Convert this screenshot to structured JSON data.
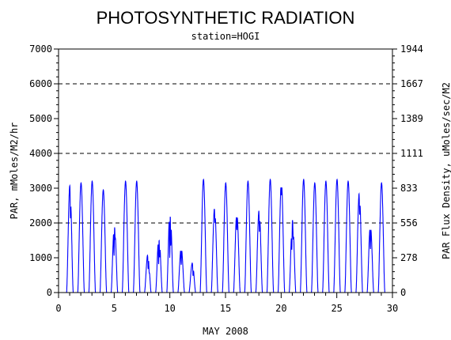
{
  "chart_data": {
    "type": "line",
    "title": "PHOTOSYNTHETIC RADIATION",
    "subtitle": "station=HOGI",
    "xlabel": "MAY 2008",
    "ylabel": "PAR, mMoles/M2/hr",
    "y2label": "PAR Flux Density, uMoles/sec/M2",
    "xlim": [
      0,
      30
    ],
    "ylim": [
      0,
      7000
    ],
    "x_ticks": [
      "0",
      "5",
      "10",
      "15",
      "20",
      "25",
      "30"
    ],
    "x_tick_values": [
      0,
      5,
      10,
      15,
      20,
      25,
      30
    ],
    "y_ticks": [
      "0",
      "1000",
      "2000",
      "3000",
      "4000",
      "5000",
      "6000",
      "7000"
    ],
    "y_tick_values": [
      0,
      1000,
      2000,
      3000,
      4000,
      5000,
      6000,
      7000
    ],
    "y2_ticks": [
      "0",
      "278",
      "556",
      "833",
      "1111",
      "1389",
      "1667",
      "1944"
    ],
    "y2_tick_values": [
      0,
      1000,
      2000,
      3000,
      4000,
      5000,
      6000,
      7000
    ],
    "dashed_gridlines": [
      2000,
      4000,
      6000
    ],
    "line_color": "#0000ff",
    "series": [
      {
        "daily_peaks": [
          {
            "day": 1,
            "peak": 3100,
            "bumps": [
              {
                "t": 0.58,
                "v": -800
              }
            ]
          },
          {
            "day": 2,
            "peak": 3150
          },
          {
            "day": 3,
            "peak": 3200
          },
          {
            "day": 4,
            "peak": 2950
          },
          {
            "day": 5,
            "peak": 2000,
            "bumps": [
              {
                "t": 0.45,
                "v": -900
              },
              {
                "t": 0.6,
                "v": -300
              }
            ]
          },
          {
            "day": 6,
            "peak": 3200
          },
          {
            "day": 7,
            "peak": 3200
          },
          {
            "day": 8,
            "peak": 1100,
            "bumps": [
              {
                "t": 0.55,
                "v": -400
              },
              {
                "t": 0.7,
                "v": -200
              }
            ]
          },
          {
            "day": 9,
            "peak": 1650,
            "bumps": [
              {
                "t": 0.45,
                "v": -800
              },
              {
                "t": 0.6,
                "v": -500
              }
            ]
          },
          {
            "day": 10,
            "peak": 2450,
            "bumps": [
              {
                "t": 0.45,
                "v": -1400
              },
              {
                "t": 0.6,
                "v": -900
              }
            ]
          },
          {
            "day": 11,
            "peak": 1300,
            "bumps": [
              {
                "t": 0.5,
                "v": -500
              }
            ]
          },
          {
            "day": 12,
            "peak": 850,
            "bumps": [
              {
                "t": 0.6,
                "v": -300
              }
            ]
          },
          {
            "day": 13,
            "peak": 3250
          },
          {
            "day": 14,
            "peak": 2450,
            "bumps": [
              {
                "t": 0.55,
                "v": -400
              }
            ]
          },
          {
            "day": 15,
            "peak": 3150
          },
          {
            "day": 16,
            "peak": 2300,
            "bumps": [
              {
                "t": 0.5,
                "v": -500
              }
            ]
          },
          {
            "day": 17,
            "peak": 3200
          },
          {
            "day": 18,
            "peak": 2400,
            "bumps": [
              {
                "t": 0.55,
                "v": -600
              }
            ]
          },
          {
            "day": 19,
            "peak": 3250
          },
          {
            "day": 20,
            "peak": 3200,
            "bumps": [
              {
                "t": 0.5,
                "v": -400
              }
            ]
          },
          {
            "day": 21,
            "peak": 2100,
            "bumps": [
              {
                "t": 0.4,
                "v": -700
              },
              {
                "t": 0.6,
                "v": -400
              }
            ]
          },
          {
            "day": 22,
            "peak": 3250
          },
          {
            "day": 23,
            "peak": 3150
          },
          {
            "day": 24,
            "peak": 3200
          },
          {
            "day": 25,
            "peak": 3250
          },
          {
            "day": 26,
            "peak": 3200
          },
          {
            "day": 27,
            "peak": 2900,
            "bumps": [
              {
                "t": 0.55,
                "v": -600
              }
            ]
          },
          {
            "day": 28,
            "peak": 1950,
            "bumps": [
              {
                "t": 0.5,
                "v": -700
              }
            ]
          },
          {
            "day": 29,
            "peak": 3150
          }
        ]
      }
    ]
  }
}
